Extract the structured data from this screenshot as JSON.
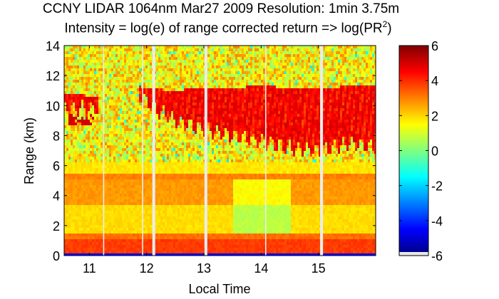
{
  "chart_data": {
    "type": "heatmap",
    "title": "CCNY LIDAR 1064nm Mar27 2009 Resolution: 1min 3.75m",
    "subtitle_prefix": "Intensity = log(e) of range corrected return => log(PR",
    "subtitle_sup": "2",
    "subtitle_suffix": ")",
    "xlabel": "Local Time",
    "ylabel": "Range (km)",
    "xlim": [
      10.56,
      16.0
    ],
    "ylim": [
      0,
      14
    ],
    "clim": [
      -6,
      6
    ],
    "colormap": "jet",
    "xticks": [
      11,
      12,
      13,
      14,
      15
    ],
    "xtick_labels": [
      "11",
      "12",
      "13",
      "14",
      "15"
    ],
    "yticks": [
      0,
      2,
      4,
      6,
      8,
      10,
      12,
      14
    ],
    "ytick_labels": [
      "0",
      "2",
      "4",
      "6",
      "8",
      "10",
      "12",
      "14"
    ],
    "cticks": [
      6,
      4,
      2,
      0,
      -2,
      -4,
      -6
    ],
    "ctick_labels": [
      "6",
      "4",
      "2",
      "0",
      "-2",
      "-4",
      "-6"
    ],
    "data_gaps_hours": [
      [
        11.24,
        11.26
      ],
      [
        11.92,
        11.94
      ],
      [
        12.1,
        12.15
      ],
      [
        13.01,
        13.06
      ],
      [
        14.07,
        14.09
      ],
      [
        15.03,
        15.08
      ]
    ],
    "cloud_layer": {
      "time": [
        10.56,
        11.15,
        11.85,
        12.1,
        12.5,
        13.0,
        13.5,
        14.0,
        14.5,
        15.0,
        15.5,
        16.0
      ],
      "top_km": [
        10.8,
        10.6,
        11.3,
        11.1,
        11.0,
        11.2,
        11.2,
        11.3,
        11.2,
        11.1,
        11.3,
        11.4
      ],
      "base_km": [
        9.8,
        9.8,
        10.8,
        9.9,
        9.0,
        8.4,
        8.0,
        7.6,
        7.2,
        7.0,
        7.4,
        7.3
      ],
      "value": 5
    },
    "background_layers": [
      {
        "range_km": [
          0,
          0.1
        ],
        "value": -4.5
      },
      {
        "range_km": [
          0.1,
          1.0
        ],
        "value": 3.8
      },
      {
        "range_km": [
          1.0,
          1.4
        ],
        "value": 3.2
      },
      {
        "range_km": [
          1.4,
          3.4
        ],
        "value": 1.9
      },
      {
        "range_km": [
          3.4,
          5.0
        ],
        "value": 2.7
      },
      {
        "range_km": [
          5.0,
          5.5
        ],
        "value": 3.0
      },
      {
        "range_km": [
          5.5,
          6.2
        ],
        "value": 1.8
      },
      {
        "range_km": [
          6.2,
          14
        ],
        "value": 1.0
      }
    ]
  }
}
